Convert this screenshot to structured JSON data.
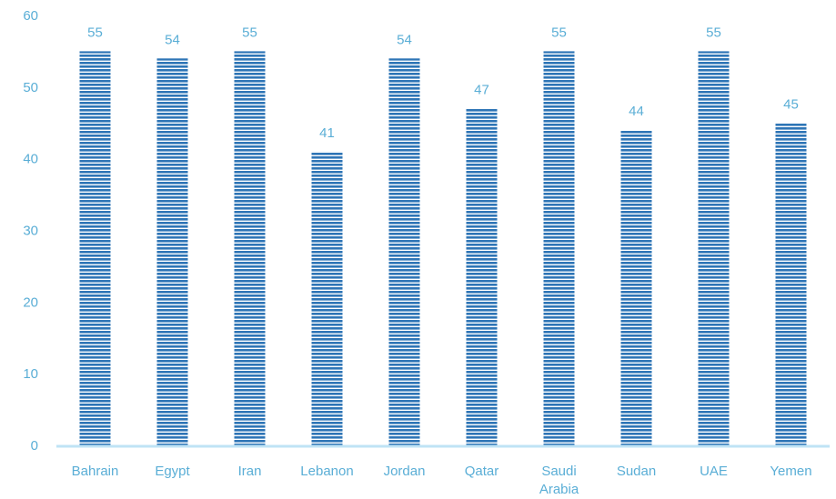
{
  "chart_data": {
    "type": "bar",
    "categories": [
      "Bahrain",
      "Egypt",
      "Iran",
      "Lebanon",
      "Jordan",
      "Qatar",
      "Saudi Arabia",
      "Sudan",
      "UAE",
      "Yemen"
    ],
    "category_lines": [
      [
        "Bahrain"
      ],
      [
        "Egypt"
      ],
      [
        "Iran"
      ],
      [
        "Lebanon"
      ],
      [
        "Jordan"
      ],
      [
        "Qatar"
      ],
      [
        "Saudi",
        "Arabia"
      ],
      [
        "Sudan"
      ],
      [
        "UAE"
      ],
      [
        "Yemen"
      ]
    ],
    "values": [
      55,
      54,
      55,
      41,
      54,
      47,
      55,
      44,
      55,
      45
    ],
    "data_labels": [
      "55",
      "54",
      "55",
      "41",
      "54",
      "47",
      "55",
      "44",
      "55",
      "45"
    ],
    "title": "",
    "xlabel": "",
    "ylabel": "",
    "ylim": [
      0,
      60
    ],
    "yticks": [
      "0",
      "10",
      "20",
      "30",
      "40",
      "50",
      "60"
    ],
    "grid": false,
    "legend": "none",
    "colors": {
      "bar": "#2e75b6",
      "bar_stripe": "#ffffff",
      "axis": "#bfe3f5",
      "text": "#5aaed6"
    }
  }
}
